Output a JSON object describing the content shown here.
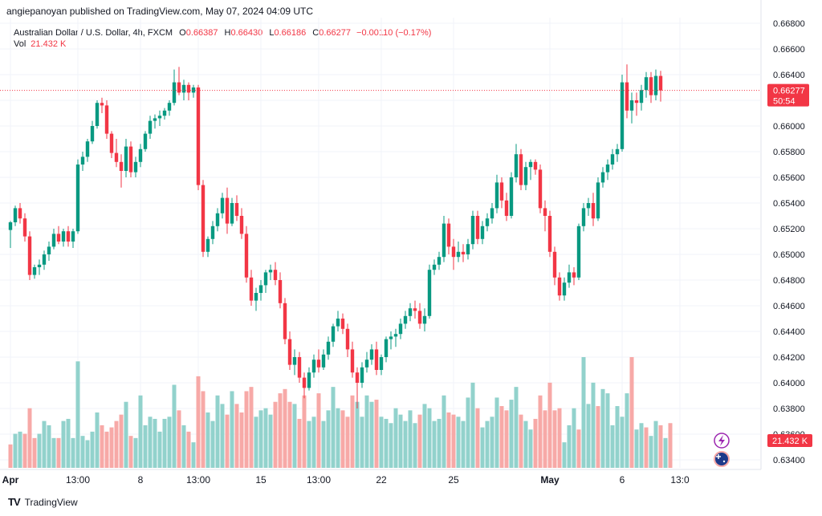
{
  "header": {
    "published": "angiepanoyan published on TradingView.com, May 07, 2024 04:09 UTC"
  },
  "legend": {
    "symbol": "Australian Dollar / U.S. Dollar, 4h, FXCM",
    "o_label": "O",
    "o": "0.66387",
    "h_label": "H",
    "h": "0.66430",
    "l_label": "L",
    "l": "0.66186",
    "c_label": "C",
    "c": "0.66277",
    "change": "−0.00110 (−0.17%)",
    "vol_label": "Vol",
    "vol_value": "21.432 K"
  },
  "price_badge": {
    "price": "0.66277",
    "countdown": "50:54"
  },
  "volume_badge": "21.432 K",
  "footer": {
    "brand": "TradingView"
  },
  "colors": {
    "up": "#089981",
    "down": "#f23645",
    "vol_up": "#92d2cc",
    "vol_down": "#f7a9a7",
    "grid": "#f0f3fa"
  },
  "chart_data": {
    "type": "candlestick",
    "ylim": [
      0.633,
      0.6695
    ],
    "y_ticks": [
      "0.66800",
      "0.66600",
      "0.66400",
      "0.66200",
      "0.66000",
      "0.65800",
      "0.65600",
      "0.65400",
      "0.65200",
      "0.65000",
      "0.64800",
      "0.64600",
      "0.64400",
      "0.64200",
      "0.64000",
      "0.63800",
      "0.63600",
      "0.63400"
    ],
    "x_ticks": [
      {
        "label": "Apr",
        "i": 0
      },
      {
        "label": "13:00",
        "i": 14
      },
      {
        "label": "8",
        "i": 27
      },
      {
        "label": "13:00",
        "i": 39
      },
      {
        "label": "15",
        "i": 52
      },
      {
        "label": "13:00",
        "i": 64
      },
      {
        "label": "22",
        "i": 77
      },
      {
        "label": "25",
        "i": 92
      },
      {
        "label": "May",
        "i": 112
      },
      {
        "label": "6",
        "i": 127
      },
      {
        "label": "13:0",
        "i": 139
      }
    ],
    "last_price": 0.66277,
    "candles": [
      [
        0.6519,
        0.6526,
        0.6505,
        0.6525
      ],
      [
        0.6525,
        0.6538,
        0.6522,
        0.6536
      ],
      [
        0.6536,
        0.654,
        0.6524,
        0.6528
      ],
      [
        0.6528,
        0.6532,
        0.651,
        0.6514
      ],
      [
        0.6514,
        0.6518,
        0.648,
        0.6484
      ],
      [
        0.6484,
        0.6492,
        0.6481,
        0.649
      ],
      [
        0.649,
        0.6496,
        0.6484,
        0.6492
      ],
      [
        0.6492,
        0.6503,
        0.6488,
        0.65
      ],
      [
        0.65,
        0.651,
        0.6495,
        0.6506
      ],
      [
        0.6506,
        0.652,
        0.6504,
        0.6516
      ],
      [
        0.6516,
        0.6522,
        0.6508,
        0.651
      ],
      [
        0.651,
        0.652,
        0.6506,
        0.6518
      ],
      [
        0.6518,
        0.6522,
        0.6506,
        0.651
      ],
      [
        0.651,
        0.652,
        0.6505,
        0.6518
      ],
      [
        0.6518,
        0.6574,
        0.6516,
        0.657
      ],
      [
        0.657,
        0.658,
        0.6565,
        0.6576
      ],
      [
        0.6576,
        0.659,
        0.6572,
        0.6588
      ],
      [
        0.6588,
        0.6604,
        0.6586,
        0.66
      ],
      [
        0.66,
        0.662,
        0.6598,
        0.6618
      ],
      [
        0.6618,
        0.6622,
        0.661,
        0.6616
      ],
      [
        0.6616,
        0.662,
        0.659,
        0.6594
      ],
      [
        0.6594,
        0.6596,
        0.6575,
        0.6579
      ],
      [
        0.6579,
        0.659,
        0.6568,
        0.6572
      ],
      [
        0.6572,
        0.6578,
        0.6552,
        0.6565
      ],
      [
        0.6565,
        0.659,
        0.656,
        0.6584
      ],
      [
        0.6584,
        0.6588,
        0.656,
        0.6564
      ],
      [
        0.6564,
        0.6576,
        0.656,
        0.6572
      ],
      [
        0.6572,
        0.6586,
        0.6568,
        0.6582
      ],
      [
        0.6582,
        0.6596,
        0.658,
        0.6594
      ],
      [
        0.6594,
        0.6608,
        0.659,
        0.6604
      ],
      [
        0.6604,
        0.6609,
        0.6598,
        0.6606
      ],
      [
        0.6606,
        0.6612,
        0.66,
        0.6608
      ],
      [
        0.6608,
        0.6614,
        0.6605,
        0.6612
      ],
      [
        0.6612,
        0.662,
        0.6608,
        0.6618
      ],
      [
        0.6618,
        0.6644,
        0.6616,
        0.6634
      ],
      [
        0.6634,
        0.6646,
        0.6624,
        0.6626
      ],
      [
        0.6626,
        0.6636,
        0.662,
        0.6632
      ],
      [
        0.6632,
        0.6634,
        0.662,
        0.6626
      ],
      [
        0.6626,
        0.6632,
        0.6622,
        0.663
      ],
      [
        0.663,
        0.6632,
        0.655,
        0.6554
      ],
      [
        0.6554,
        0.6558,
        0.6498,
        0.6502
      ],
      [
        0.6502,
        0.6514,
        0.6498,
        0.6512
      ],
      [
        0.6512,
        0.6526,
        0.6508,
        0.6522
      ],
      [
        0.6522,
        0.6536,
        0.6518,
        0.6532
      ],
      [
        0.6532,
        0.6548,
        0.6528,
        0.6544
      ],
      [
        0.6544,
        0.6552,
        0.6516,
        0.6524
      ],
      [
        0.6524,
        0.6544,
        0.6522,
        0.654
      ],
      [
        0.654,
        0.6546,
        0.6526,
        0.653
      ],
      [
        0.653,
        0.6536,
        0.6512,
        0.6516
      ],
      [
        0.6516,
        0.6522,
        0.6478,
        0.6482
      ],
      [
        0.6482,
        0.6488,
        0.646,
        0.6464
      ],
      [
        0.6464,
        0.6474,
        0.6456,
        0.647
      ],
      [
        0.647,
        0.648,
        0.6464,
        0.6476
      ],
      [
        0.6476,
        0.6488,
        0.647,
        0.6486
      ],
      [
        0.6486,
        0.6492,
        0.648,
        0.6488
      ],
      [
        0.6488,
        0.6494,
        0.6476,
        0.648
      ],
      [
        0.648,
        0.6486,
        0.6458,
        0.6462
      ],
      [
        0.6462,
        0.6466,
        0.643,
        0.6434
      ],
      [
        0.6434,
        0.644,
        0.641,
        0.6414
      ],
      [
        0.6414,
        0.6426,
        0.6406,
        0.642
      ],
      [
        0.642,
        0.6424,
        0.64,
        0.6404
      ],
      [
        0.6404,
        0.6408,
        0.6388,
        0.6396
      ],
      [
        0.6396,
        0.6412,
        0.6394,
        0.6408
      ],
      [
        0.6408,
        0.6422,
        0.6404,
        0.6418
      ],
      [
        0.6418,
        0.6426,
        0.6408,
        0.6412
      ],
      [
        0.6412,
        0.6426,
        0.641,
        0.6422
      ],
      [
        0.6422,
        0.6436,
        0.6418,
        0.6432
      ],
      [
        0.6432,
        0.6446,
        0.6428,
        0.6444
      ],
      [
        0.6444,
        0.6456,
        0.644,
        0.645
      ],
      [
        0.645,
        0.6454,
        0.6438,
        0.6442
      ],
      [
        0.6442,
        0.6446,
        0.642,
        0.6426
      ],
      [
        0.6426,
        0.6432,
        0.6404,
        0.6408
      ],
      [
        0.6408,
        0.6412,
        0.638,
        0.64
      ],
      [
        0.64,
        0.6416,
        0.6396,
        0.6412
      ],
      [
        0.6412,
        0.6424,
        0.6408,
        0.6418
      ],
      [
        0.6418,
        0.643,
        0.6414,
        0.6426
      ],
      [
        0.6426,
        0.6432,
        0.6406,
        0.641
      ],
      [
        0.641,
        0.6422,
        0.6406,
        0.642
      ],
      [
        0.642,
        0.6436,
        0.6416,
        0.6434
      ],
      [
        0.6434,
        0.644,
        0.6426,
        0.6436
      ],
      [
        0.6436,
        0.6442,
        0.6428,
        0.6438
      ],
      [
        0.6438,
        0.645,
        0.6434,
        0.6446
      ],
      [
        0.6446,
        0.6456,
        0.6442,
        0.6452
      ],
      [
        0.6452,
        0.6462,
        0.6448,
        0.6458
      ],
      [
        0.6458,
        0.6464,
        0.645,
        0.6456
      ],
      [
        0.6456,
        0.6462,
        0.6442,
        0.6446
      ],
      [
        0.6446,
        0.6458,
        0.644,
        0.6452
      ],
      [
        0.6452,
        0.6492,
        0.645,
        0.6488
      ],
      [
        0.6488,
        0.6496,
        0.6484,
        0.6492
      ],
      [
        0.6492,
        0.6502,
        0.6488,
        0.6498
      ],
      [
        0.6498,
        0.653,
        0.6494,
        0.6524
      ],
      [
        0.6524,
        0.6528,
        0.65,
        0.6506
      ],
      [
        0.6506,
        0.6512,
        0.6488,
        0.6498
      ],
      [
        0.6498,
        0.651,
        0.6494,
        0.6502
      ],
      [
        0.6502,
        0.6508,
        0.6494,
        0.65
      ],
      [
        0.65,
        0.6512,
        0.6496,
        0.6508
      ],
      [
        0.6508,
        0.6534,
        0.6504,
        0.653
      ],
      [
        0.653,
        0.6534,
        0.6508,
        0.6512
      ],
      [
        0.6512,
        0.6526,
        0.6508,
        0.6522
      ],
      [
        0.6522,
        0.6532,
        0.6518,
        0.6528
      ],
      [
        0.6528,
        0.654,
        0.6524,
        0.6536
      ],
      [
        0.6536,
        0.6562,
        0.6532,
        0.6556
      ],
      [
        0.6556,
        0.656,
        0.6536,
        0.6542
      ],
      [
        0.6542,
        0.6548,
        0.6526,
        0.653
      ],
      [
        0.653,
        0.6564,
        0.6528,
        0.656
      ],
      [
        0.656,
        0.6586,
        0.6556,
        0.6578
      ],
      [
        0.6578,
        0.6582,
        0.655,
        0.6554
      ],
      [
        0.6554,
        0.6572,
        0.655,
        0.6568
      ],
      [
        0.6568,
        0.6574,
        0.6558,
        0.6572
      ],
      [
        0.6572,
        0.6574,
        0.6562,
        0.6566
      ],
      [
        0.6566,
        0.657,
        0.6532,
        0.6536
      ],
      [
        0.6536,
        0.6542,
        0.6518,
        0.653
      ],
      [
        0.653,
        0.6534,
        0.6498,
        0.6502
      ],
      [
        0.6502,
        0.6506,
        0.6476,
        0.6482
      ],
      [
        0.6482,
        0.6486,
        0.6464,
        0.6468
      ],
      [
        0.6468,
        0.6482,
        0.6464,
        0.6478
      ],
      [
        0.6478,
        0.6492,
        0.6474,
        0.6486
      ],
      [
        0.6486,
        0.649,
        0.6476,
        0.6482
      ],
      [
        0.6482,
        0.6524,
        0.648,
        0.6522
      ],
      [
        0.6522,
        0.654,
        0.6518,
        0.6536
      ],
      [
        0.6536,
        0.6544,
        0.653,
        0.654
      ],
      [
        0.654,
        0.6548,
        0.6522,
        0.6528
      ],
      [
        0.6528,
        0.656,
        0.6526,
        0.6556
      ],
      [
        0.6556,
        0.6568,
        0.6552,
        0.6564
      ],
      [
        0.6564,
        0.6574,
        0.6558,
        0.657
      ],
      [
        0.657,
        0.6582,
        0.6566,
        0.6578
      ],
      [
        0.6578,
        0.6586,
        0.6572,
        0.6582
      ],
      [
        0.6582,
        0.664,
        0.658,
        0.6634
      ],
      [
        0.6634,
        0.6648,
        0.6606,
        0.6612
      ],
      [
        0.6612,
        0.6626,
        0.6602,
        0.662
      ],
      [
        0.662,
        0.6626,
        0.6608,
        0.6618
      ],
      [
        0.6618,
        0.6632,
        0.6612,
        0.6628
      ],
      [
        0.6628,
        0.6642,
        0.6622,
        0.6638
      ],
      [
        0.6638,
        0.6642,
        0.6618,
        0.6624
      ],
      [
        0.6624,
        0.6644,
        0.662,
        0.6639
      ],
      [
        0.6639,
        0.6643,
        0.6619,
        0.66277
      ]
    ],
    "volumes": [
      [
        11,
        0
      ],
      [
        16,
        1
      ],
      [
        17,
        1
      ],
      [
        16,
        0
      ],
      [
        28,
        0
      ],
      [
        14,
        0
      ],
      [
        16,
        1
      ],
      [
        22,
        1
      ],
      [
        20,
        1
      ],
      [
        14,
        1
      ],
      [
        14,
        0
      ],
      [
        22,
        1
      ],
      [
        23,
        1
      ],
      [
        14,
        1
      ],
      [
        50,
        1
      ],
      [
        15,
        1
      ],
      [
        13,
        1
      ],
      [
        17,
        1
      ],
      [
        26,
        1
      ],
      [
        20,
        0
      ],
      [
        17,
        0
      ],
      [
        19,
        0
      ],
      [
        22,
        0
      ],
      [
        25,
        0
      ],
      [
        31,
        1
      ],
      [
        15,
        0
      ],
      [
        14,
        1
      ],
      [
        34,
        1
      ],
      [
        20,
        1
      ],
      [
        24,
        1
      ],
      [
        23,
        1
      ],
      [
        17,
        1
      ],
      [
        23,
        1
      ],
      [
        24,
        1
      ],
      [
        39,
        1
      ],
      [
        27,
        0
      ],
      [
        20,
        1
      ],
      [
        17,
        0
      ],
      [
        12,
        1
      ],
      [
        43,
        0
      ],
      [
        36,
        0
      ],
      [
        26,
        1
      ],
      [
        22,
        1
      ],
      [
        34,
        1
      ],
      [
        30,
        1
      ],
      [
        25,
        0
      ],
      [
        36,
        1
      ],
      [
        30,
        0
      ],
      [
        26,
        0
      ],
      [
        36,
        0
      ],
      [
        38,
        0
      ],
      [
        24,
        1
      ],
      [
        27,
        1
      ],
      [
        28,
        1
      ],
      [
        25,
        1
      ],
      [
        31,
        0
      ],
      [
        35,
        0
      ],
      [
        37,
        0
      ],
      [
        31,
        0
      ],
      [
        30,
        1
      ],
      [
        23,
        0
      ],
      [
        34,
        0
      ],
      [
        22,
        1
      ],
      [
        24,
        1
      ],
      [
        35,
        0
      ],
      [
        22,
        1
      ],
      [
        27,
        1
      ],
      [
        38,
        1
      ],
      [
        28,
        1
      ],
      [
        27,
        0
      ],
      [
        24,
        0
      ],
      [
        34,
        0
      ],
      [
        31,
        1
      ],
      [
        24,
        1
      ],
      [
        34,
        1
      ],
      [
        31,
        1
      ],
      [
        32,
        0
      ],
      [
        24,
        1
      ],
      [
        23,
        1
      ],
      [
        21,
        1
      ],
      [
        28,
        1
      ],
      [
        25,
        1
      ],
      [
        22,
        1
      ],
      [
        27,
        1
      ],
      [
        21,
        1
      ],
      [
        25,
        0
      ],
      [
        30,
        1
      ],
      [
        28,
        1
      ],
      [
        22,
        1
      ],
      [
        23,
        1
      ],
      [
        34,
        1
      ],
      [
        26,
        0
      ],
      [
        25,
        0
      ],
      [
        24,
        1
      ],
      [
        22,
        1
      ],
      [
        33,
        1
      ],
      [
        40,
        1
      ],
      [
        28,
        0
      ],
      [
        19,
        1
      ],
      [
        22,
        1
      ],
      [
        24,
        1
      ],
      [
        33,
        1
      ],
      [
        29,
        0
      ],
      [
        27,
        0
      ],
      [
        32,
        1
      ],
      [
        38,
        1
      ],
      [
        25,
        0
      ],
      [
        22,
        1
      ],
      [
        18,
        1
      ],
      [
        23,
        0
      ],
      [
        34,
        0
      ],
      [
        27,
        0
      ],
      [
        40,
        0
      ],
      [
        27,
        0
      ],
      [
        28,
        0
      ],
      [
        12,
        1
      ],
      [
        20,
        1
      ],
      [
        28,
        1
      ],
      [
        18,
        0
      ],
      [
        52,
        1
      ],
      [
        30,
        1
      ],
      [
        40,
        1
      ],
      [
        29,
        0
      ],
      [
        37,
        1
      ],
      [
        35,
        1
      ],
      [
        20,
        1
      ],
      [
        29,
        1
      ],
      [
        24,
        1
      ],
      [
        35,
        1
      ],
      [
        52,
        0
      ],
      [
        18,
        1
      ],
      [
        21,
        1
      ],
      [
        19,
        0
      ],
      [
        15,
        1
      ],
      [
        22,
        1
      ],
      [
        20,
        0
      ],
      [
        14,
        1
      ],
      [
        21,
        0
      ]
    ]
  }
}
